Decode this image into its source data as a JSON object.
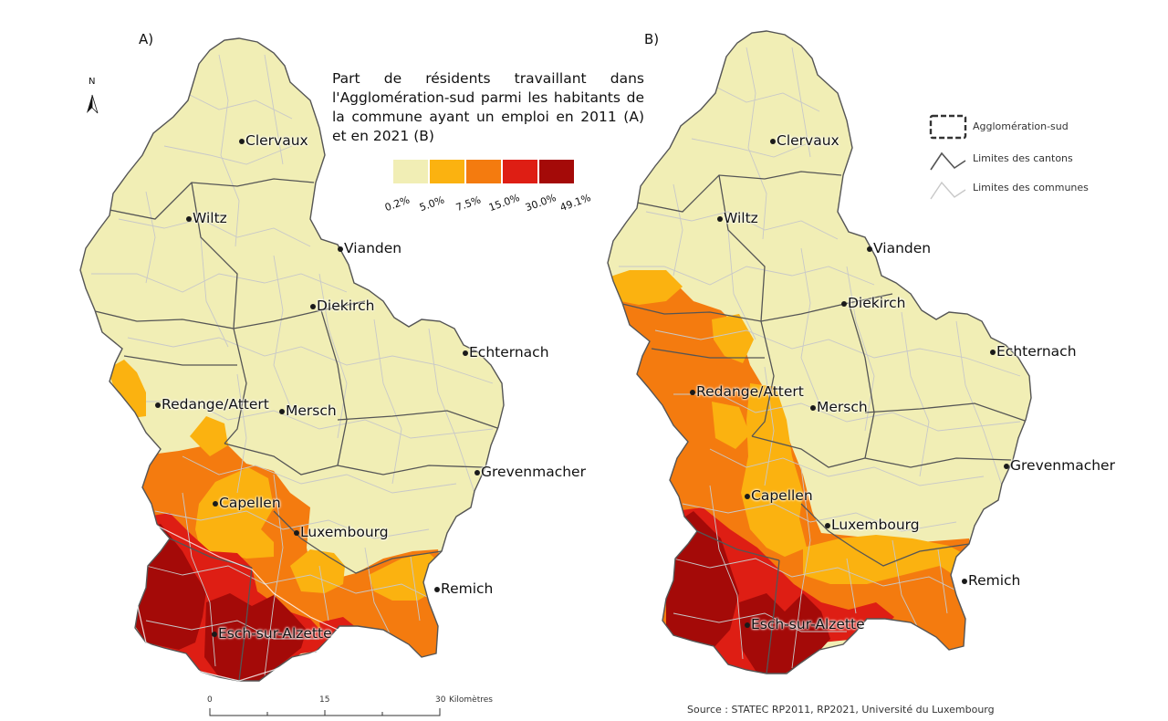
{
  "panels": [
    {
      "label": "A)",
      "share_2011": true
    },
    {
      "label": "B)",
      "share_2021": true
    }
  ],
  "north_label": "N",
  "legend": {
    "title": "Part de résidents travaillant dans l'Agglomération-sud parmi les habitants de la commune ayant un emploi en 2011 (A) et en 2021 (B)",
    "colors": [
      "#f1eeb5",
      "#fbb210",
      "#f47b0f",
      "#de1e14",
      "#a40a08"
    ],
    "breaks": [
      "0.2%",
      "5.0%",
      "7.5%",
      "15.0%",
      "30.0%",
      "49.1%"
    ]
  },
  "key": {
    "agglomeration": "Agglomération-sud",
    "cantons": "Limites des cantons",
    "communes": "Limites des communes"
  },
  "cities": [
    "Clervaux",
    "Wiltz",
    "Vianden",
    "Diekirch",
    "Echternach",
    "Redange/Attert",
    "Mersch",
    "Grevenmacher",
    "Capellen",
    "Luxembourg",
    "Remich",
    "Esch-sur-Alzette"
  ],
  "scale": {
    "ticks": [
      "0",
      "15",
      "30"
    ],
    "unit": "Kilomètres"
  },
  "source": "Source : STATEC RP2011, RP2021, Université du Luxembourg"
}
